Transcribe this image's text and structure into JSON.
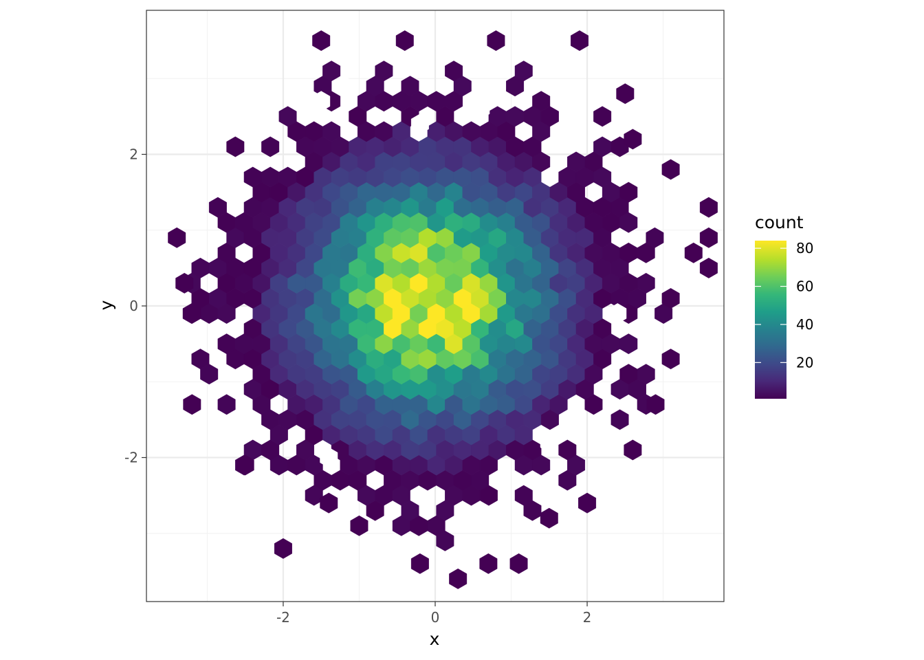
{
  "chart_data": {
    "type": "heatmap",
    "geometry": "hexbin",
    "title": "",
    "xlabel": "x",
    "ylabel": "y",
    "xlim": [
      -3.8,
      3.8
    ],
    "ylim": [
      -3.9,
      3.9
    ],
    "x_ticks": [
      -2,
      0,
      2
    ],
    "x_tick_labels": [
      "-2",
      "0",
      "2"
    ],
    "y_ticks": [
      -2,
      0,
      2
    ],
    "y_tick_labels": [
      "-2",
      "0",
      "2"
    ],
    "grid": true,
    "theme": "bw",
    "legend": {
      "title": "count",
      "placement": "right",
      "breaks": [
        20,
        40,
        60,
        80
      ],
      "labels": [
        "20",
        "40",
        "60",
        "80"
      ],
      "range": [
        1,
        84
      ]
    },
    "color_scale": {
      "name": "viridis",
      "stops": [
        "#440154",
        "#482878",
        "#3e4989",
        "#31688e",
        "#26828e",
        "#1f9e89",
        "#35b779",
        "#6ece58",
        "#b5de2b",
        "#fde725"
      ]
    },
    "hex_width": 0.23,
    "hex_row_height": 0.2,
    "center_point": [
      -0.1,
      0.1
    ],
    "peak_count": 84,
    "empty_cells": [
      [
        -2.8,
        1.8
      ],
      [
        -1.5,
        2.7
      ],
      [
        -1.2,
        2.9
      ],
      [
        -0.2,
        2.4
      ],
      [
        0.6,
        2.6
      ],
      [
        1.5,
        -1.8
      ],
      [
        2.4,
        -0.1
      ],
      [
        -1.4,
        -2.0
      ]
    ],
    "isolated_cells": [
      [
        -3.4,
        0.9
      ],
      [
        -3.3,
        0.3
      ],
      [
        -3.2,
        -0.1
      ],
      [
        -3.2,
        -1.3
      ],
      [
        -2.0,
        -3.2
      ],
      [
        -1.5,
        3.5
      ],
      [
        -0.4,
        3.5
      ],
      [
        0.8,
        3.5
      ],
      [
        1.9,
        3.5
      ],
      [
        2.5,
        2.8
      ],
      [
        2.6,
        2.2
      ],
      [
        3.1,
        1.8
      ],
      [
        3.6,
        1.3
      ],
      [
        3.6,
        0.9
      ],
      [
        3.4,
        0.7
      ],
      [
        3.6,
        0.5
      ],
      [
        3.1,
        0.1
      ],
      [
        3.1,
        -0.7
      ],
      [
        2.9,
        -1.3
      ],
      [
        2.6,
        -1.9
      ],
      [
        2.0,
        -2.6
      ],
      [
        1.5,
        -2.8
      ],
      [
        1.1,
        -3.4
      ],
      [
        0.7,
        -3.4
      ],
      [
        0.3,
        -3.6
      ],
      [
        -0.2,
        -3.4
      ],
      [
        -1.0,
        -2.9
      ],
      [
        -1.4,
        -2.6
      ],
      [
        -2.5,
        -2.1
      ]
    ]
  }
}
